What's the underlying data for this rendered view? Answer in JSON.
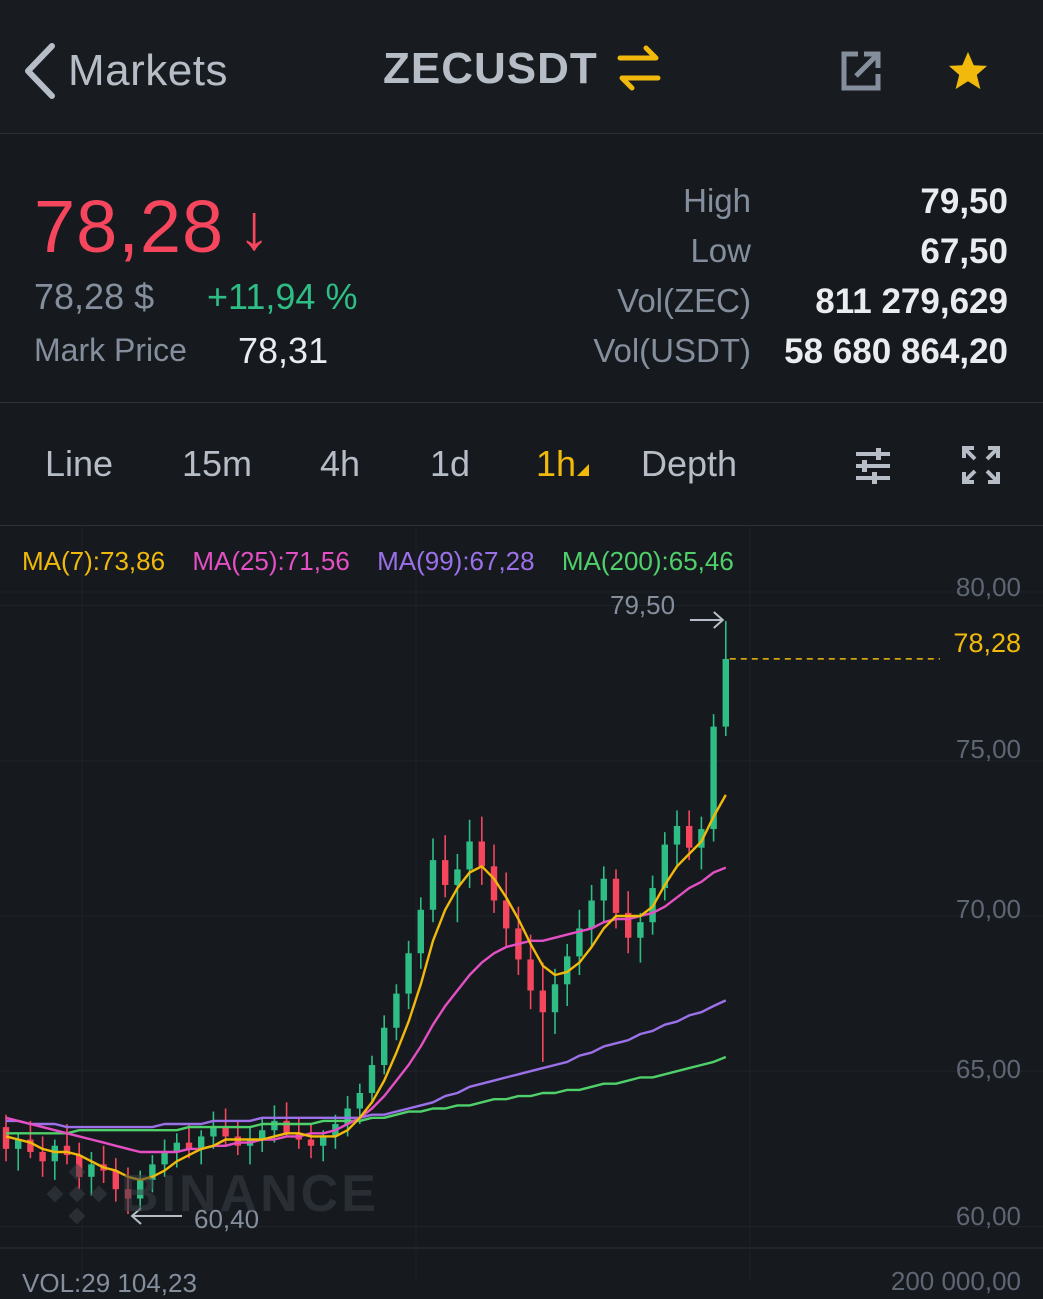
{
  "header": {
    "back_label": "Markets",
    "pair": "ZECUSDT"
  },
  "summary": {
    "last_price": "78,28",
    "price_direction": "down",
    "usd_price": "78,28 $",
    "change_pct": "+11,94 %",
    "mark_price_label": "Mark Price",
    "mark_price": "78,31",
    "stats": [
      {
        "label": "High",
        "value": "79,50"
      },
      {
        "label": "Low",
        "value": "67,50"
      },
      {
        "label": "Vol(ZEC)",
        "value": "811 279,629"
      },
      {
        "label": "Vol(USDT)",
        "value": "58 680 864,20"
      }
    ]
  },
  "tabs": [
    {
      "label": "Line",
      "active": false
    },
    {
      "label": "15m",
      "active": false
    },
    {
      "label": "4h",
      "active": false
    },
    {
      "label": "1d",
      "active": false
    },
    {
      "label": "1h",
      "active": true
    },
    {
      "label": "Depth",
      "active": false
    }
  ],
  "colors": {
    "up": "#2ebd85",
    "down": "#f6465d",
    "accent": "#f0b90b",
    "ma7": "#f0b90b",
    "ma25": "#e44fc3",
    "ma99": "#9c70e8",
    "ma200": "#4fd06a"
  },
  "chart_data": {
    "type": "candlestick",
    "ma_legend": [
      {
        "label": "MA(7):73,86",
        "color": "#f0b90b"
      },
      {
        "label": "MA(25):71,56",
        "color": "#e44fc3"
      },
      {
        "label": "MA(99):67,28",
        "color": "#9c70e8"
      },
      {
        "label": "MA(200):65,46",
        "color": "#4fd06a"
      }
    ],
    "y_ticks": [
      "80,00",
      "75,00",
      "70,00",
      "65,00",
      "60,00"
    ],
    "ylim": [
      59.5,
      80.5
    ],
    "last_price_label": "78,28",
    "last_price": 78.28,
    "high_label": "79,50",
    "high": 79.5,
    "low_label": "60,40",
    "low": 60.4,
    "watermark": "BINANCE",
    "volume_label": "VOL:29 104,23",
    "volume_axis_label": "200 000,00",
    "candles": [
      [
        63.2,
        63.6,
        62.1,
        62.5
      ],
      [
        62.5,
        63.0,
        61.8,
        62.8
      ],
      [
        62.8,
        63.4,
        62.2,
        62.4
      ],
      [
        62.4,
        62.9,
        61.6,
        62.1
      ],
      [
        62.1,
        62.8,
        61.5,
        62.6
      ],
      [
        62.6,
        63.3,
        62.0,
        62.3
      ],
      [
        62.3,
        62.7,
        61.2,
        61.6
      ],
      [
        61.6,
        62.4,
        61.0,
        62.0
      ],
      [
        62.0,
        62.6,
        61.4,
        61.8
      ],
      [
        61.8,
        62.2,
        60.8,
        61.2
      ],
      [
        61.2,
        61.9,
        60.4,
        60.9
      ],
      [
        60.9,
        61.8,
        60.5,
        61.5
      ],
      [
        61.5,
        62.3,
        61.1,
        62.0
      ],
      [
        62.0,
        62.8,
        61.6,
        62.4
      ],
      [
        62.4,
        63.0,
        61.9,
        62.7
      ],
      [
        62.7,
        63.3,
        62.2,
        62.5
      ],
      [
        62.5,
        63.1,
        62.0,
        62.9
      ],
      [
        62.9,
        63.7,
        62.5,
        63.2
      ],
      [
        63.2,
        63.8,
        62.6,
        62.9
      ],
      [
        62.9,
        63.4,
        62.3,
        62.6
      ],
      [
        62.6,
        63.2,
        62.0,
        62.8
      ],
      [
        62.8,
        63.5,
        62.4,
        63.1
      ],
      [
        63.1,
        63.9,
        62.7,
        63.4
      ],
      [
        63.4,
        64.0,
        62.9,
        63.0
      ],
      [
        63.0,
        63.5,
        62.5,
        62.8
      ],
      [
        62.8,
        63.3,
        62.2,
        62.6
      ],
      [
        62.6,
        63.1,
        62.1,
        62.9
      ],
      [
        62.9,
        63.6,
        62.5,
        63.3
      ],
      [
        63.3,
        64.2,
        62.9,
        63.8
      ],
      [
        63.8,
        64.6,
        63.3,
        64.3
      ],
      [
        64.3,
        65.5,
        64.0,
        65.2
      ],
      [
        65.2,
        66.8,
        64.9,
        66.4
      ],
      [
        66.4,
        67.8,
        66.0,
        67.5
      ],
      [
        67.5,
        69.2,
        67.0,
        68.8
      ],
      [
        68.8,
        70.6,
        68.3,
        70.2
      ],
      [
        70.2,
        72.5,
        69.8,
        71.8
      ],
      [
        71.8,
        72.6,
        70.6,
        71.0
      ],
      [
        71.0,
        72.0,
        69.8,
        71.5
      ],
      [
        71.5,
        73.1,
        70.9,
        72.4
      ],
      [
        72.4,
        73.2,
        71.0,
        71.6
      ],
      [
        71.6,
        72.3,
        70.1,
        70.5
      ],
      [
        70.5,
        71.4,
        69.0,
        69.6
      ],
      [
        69.6,
        70.3,
        68.1,
        68.6
      ],
      [
        68.6,
        69.4,
        67.0,
        67.6
      ],
      [
        67.6,
        68.5,
        65.3,
        66.9
      ],
      [
        66.9,
        68.3,
        66.2,
        67.8
      ],
      [
        67.8,
        69.1,
        67.1,
        68.7
      ],
      [
        68.7,
        70.2,
        68.1,
        69.6
      ],
      [
        69.6,
        71.0,
        69.0,
        70.5
      ],
      [
        70.5,
        71.6,
        69.8,
        71.2
      ],
      [
        71.2,
        71.5,
        69.6,
        70.1
      ],
      [
        70.1,
        70.8,
        68.8,
        69.3
      ],
      [
        69.3,
        70.1,
        68.5,
        69.8
      ],
      [
        69.8,
        71.3,
        69.4,
        70.9
      ],
      [
        70.9,
        72.7,
        70.5,
        72.3
      ],
      [
        72.3,
        73.4,
        71.6,
        72.9
      ],
      [
        72.9,
        73.4,
        71.8,
        72.2
      ],
      [
        72.2,
        73.2,
        71.5,
        72.8
      ],
      [
        72.8,
        76.5,
        72.4,
        76.1
      ],
      [
        76.1,
        79.5,
        75.8,
        78.28
      ]
    ],
    "ma7": [
      62.9,
      62.8,
      62.7,
      62.5,
      62.4,
      62.4,
      62.3,
      62.1,
      61.9,
      61.8,
      61.6,
      61.5,
      61.6,
      61.8,
      62.1,
      62.3,
      62.5,
      62.6,
      62.8,
      62.8,
      62.8,
      62.8,
      62.9,
      63.0,
      63.0,
      62.9,
      62.9,
      62.9,
      63.1,
      63.5,
      64.0,
      64.7,
      65.6,
      66.6,
      67.8,
      69.2,
      70.2,
      70.9,
      71.4,
      71.6,
      71.2,
      70.6,
      69.9,
      69.1,
      68.4,
      68.1,
      68.2,
      68.5,
      69.0,
      69.6,
      70.0,
      70.0,
      70.0,
      70.3,
      71.0,
      71.6,
      72.0,
      72.4,
      73.2,
      73.9
    ],
    "ma25": [
      63.5,
      63.4,
      63.3,
      63.2,
      63.1,
      63.0,
      62.9,
      62.8,
      62.7,
      62.6,
      62.5,
      62.4,
      62.4,
      62.4,
      62.4,
      62.5,
      62.5,
      62.6,
      62.6,
      62.7,
      62.7,
      62.8,
      62.8,
      62.9,
      62.9,
      63.0,
      63.0,
      63.1,
      63.3,
      63.5,
      63.8,
      64.2,
      64.7,
      65.2,
      65.8,
      66.5,
      67.1,
      67.6,
      68.1,
      68.5,
      68.8,
      69.0,
      69.1,
      69.2,
      69.2,
      69.3,
      69.4,
      69.5,
      69.6,
      69.8,
      69.9,
      69.9,
      70.0,
      70.1,
      70.3,
      70.6,
      70.9,
      71.1,
      71.4,
      71.56
    ],
    "ma99": [
      63.4,
      63.4,
      63.3,
      63.3,
      63.3,
      63.2,
      63.2,
      63.2,
      63.2,
      63.2,
      63.2,
      63.2,
      63.2,
      63.3,
      63.3,
      63.3,
      63.3,
      63.4,
      63.4,
      63.4,
      63.4,
      63.5,
      63.5,
      63.5,
      63.5,
      63.5,
      63.5,
      63.5,
      63.5,
      63.5,
      63.6,
      63.6,
      63.7,
      63.8,
      63.9,
      64.0,
      64.2,
      64.3,
      64.5,
      64.6,
      64.7,
      64.8,
      64.9,
      65.0,
      65.1,
      65.2,
      65.3,
      65.5,
      65.6,
      65.8,
      65.9,
      66.0,
      66.2,
      66.3,
      66.5,
      66.6,
      66.8,
      66.9,
      67.1,
      67.28
    ],
    "ma200": [
      63.0,
      63.0,
      63.0,
      63.0,
      63.0,
      63.0,
      63.1,
      63.1,
      63.1,
      63.1,
      63.1,
      63.1,
      63.1,
      63.1,
      63.1,
      63.2,
      63.2,
      63.2,
      63.2,
      63.2,
      63.2,
      63.3,
      63.3,
      63.3,
      63.3,
      63.3,
      63.4,
      63.4,
      63.4,
      63.4,
      63.5,
      63.5,
      63.6,
      63.7,
      63.7,
      63.8,
      63.8,
      63.9,
      63.9,
      64.0,
      64.1,
      64.1,
      64.2,
      64.2,
      64.3,
      64.3,
      64.4,
      64.4,
      64.5,
      64.6,
      64.6,
      64.7,
      64.8,
      64.8,
      64.9,
      65.0,
      65.1,
      65.2,
      65.3,
      65.46
    ]
  }
}
